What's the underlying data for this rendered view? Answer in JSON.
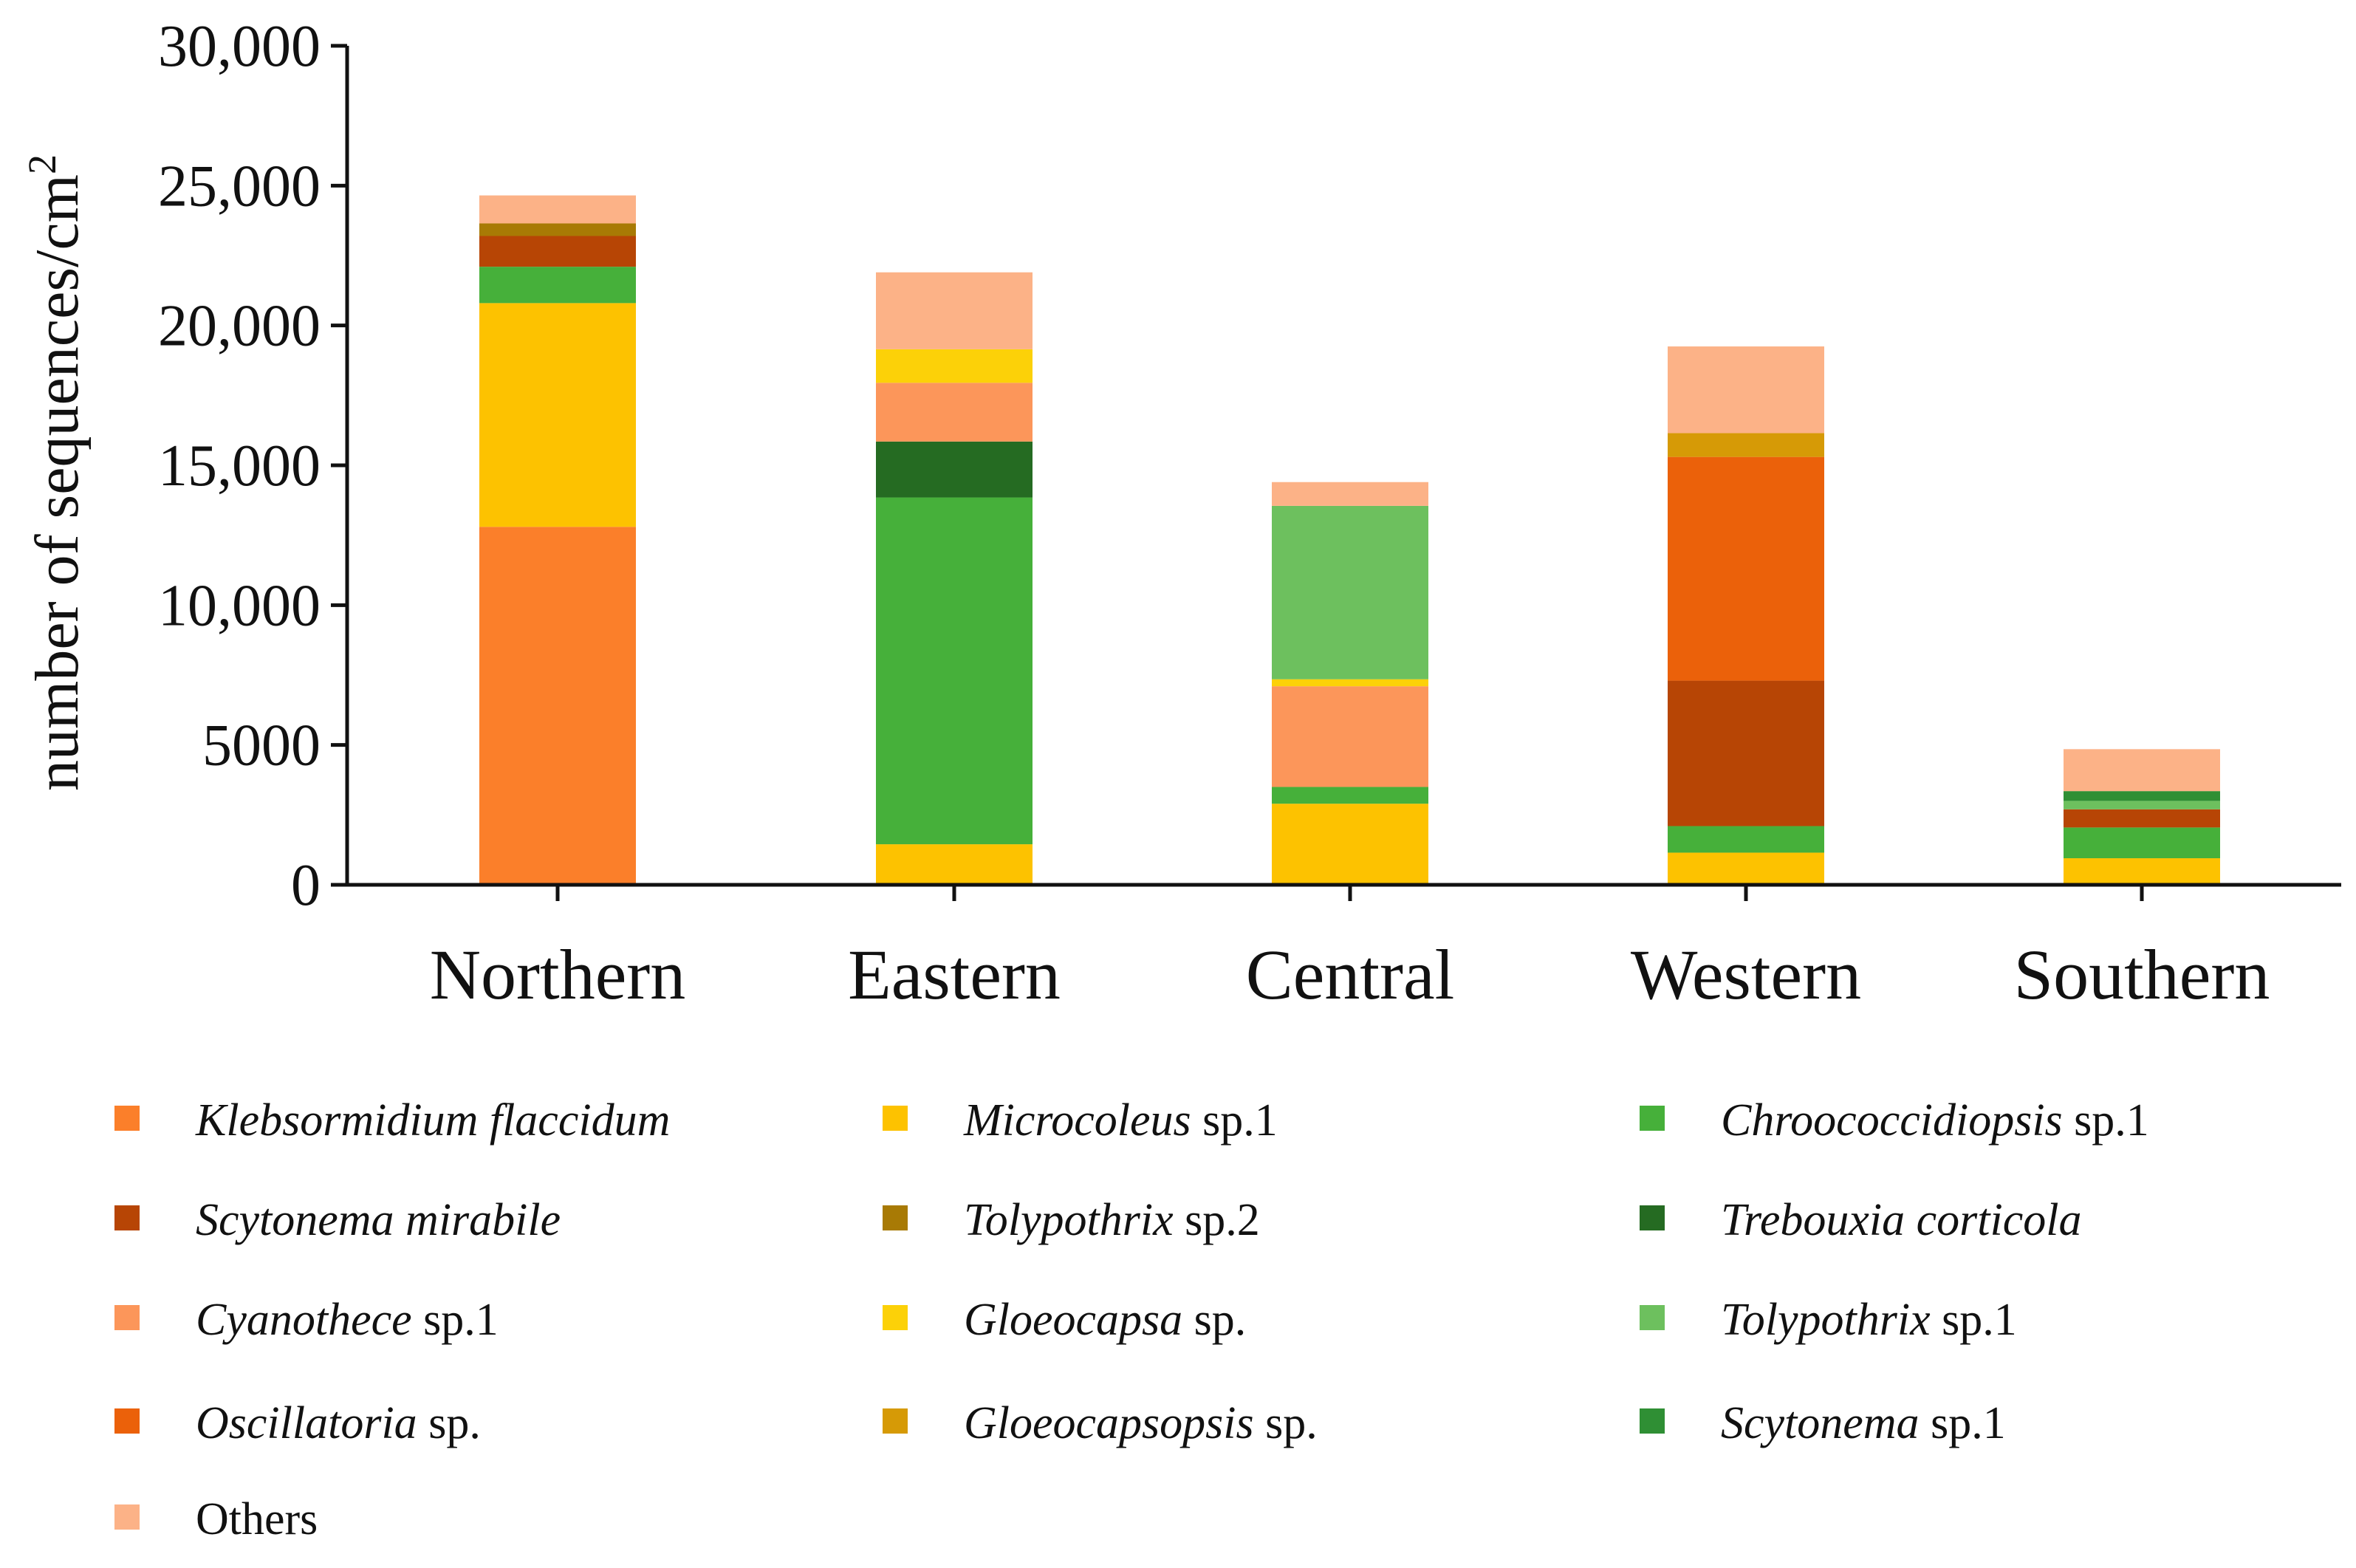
{
  "chart_data": {
    "type": "bar",
    "stacked": true,
    "ylabel": "number of sequences/cm",
    "ylabel_superscript": "2",
    "xlabel": "",
    "ylim": [
      0,
      30000
    ],
    "yticks": [
      0,
      5000,
      10000,
      15000,
      20000,
      25000,
      30000
    ],
    "ytick_labels": [
      "0",
      "5000",
      "10,000",
      "15,000",
      "20,000",
      "25,000",
      "30,000"
    ],
    "grid": false,
    "legend_position": "bottom",
    "categories": [
      "Northern",
      "Eastern",
      "Central",
      "Western",
      "Southern"
    ],
    "series": [
      {
        "name": "Klebsormidium flaccidum",
        "italic": "Klebsormidium flaccidum",
        "suffix": "",
        "color": "#FB7F2A",
        "values": [
          12800,
          0,
          0,
          0,
          0
        ]
      },
      {
        "name": "Microcoleus sp.1",
        "italic": "Microcoleus",
        "suffix": " sp.1",
        "color": "#FDC200",
        "values": [
          8000,
          1450,
          2900,
          1150,
          950
        ]
      },
      {
        "name": "Chroococcidiopsis sp.1",
        "italic": "Chroococcidiopsis",
        "suffix": " sp.1",
        "color": "#46B03A",
        "values": [
          1300,
          12400,
          600,
          950,
          1100
        ]
      },
      {
        "name": "Scytonema mirabile",
        "italic": "Scytonema mirabile",
        "suffix": "",
        "color": "#B74505",
        "values": [
          1100,
          0,
          0,
          5200,
          650
        ]
      },
      {
        "name": "Tolypothrix sp.2",
        "italic": "Tolypothrix",
        "suffix": " sp.2",
        "color": "#A87A05",
        "values": [
          450,
          0,
          0,
          0,
          0
        ]
      },
      {
        "name": "Trebouxia corticola",
        "italic": "Trebouxia corticola",
        "suffix": "",
        "color": "#256B22",
        "values": [
          0,
          2000,
          0,
          0,
          0
        ]
      },
      {
        "name": "Cyanothece sp.1",
        "italic": "Cyanothece",
        "suffix": " sp.1",
        "color": "#FC965A",
        "values": [
          0,
          2100,
          3600,
          0,
          0
        ]
      },
      {
        "name": "Gloeocapsa sp.",
        "italic": "Gloeocapsa",
        "suffix": " sp.",
        "color": "#FCD108",
        "values": [
          0,
          1200,
          250,
          0,
          0
        ]
      },
      {
        "name": "Tolypothrix sp.1",
        "italic": "Tolypothrix",
        "suffix": " sp.1",
        "color": "#6DC05E",
        "values": [
          0,
          0,
          6200,
          0,
          300
        ]
      },
      {
        "name": "Oscillatoria sp.",
        "italic": "Oscillatoria",
        "suffix": " sp.",
        "color": "#EB610A",
        "values": [
          0,
          0,
          0,
          8000,
          0
        ]
      },
      {
        "name": "Gloeocapsopsis sp.",
        "italic": "Gloeocapsopsis",
        "suffix": " sp.",
        "color": "#D69A06",
        "values": [
          0,
          0,
          0,
          850,
          0
        ]
      },
      {
        "name": "Scytonema sp.1",
        "italic": "Scytonema",
        "suffix": " sp.1",
        "color": "#2F8F34",
        "values": [
          0,
          0,
          0,
          0,
          350
        ]
      },
      {
        "name": "Others",
        "italic": "",
        "suffix": "Others",
        "color": "#FCB287",
        "values": [
          1000,
          2750,
          850,
          3100,
          1500
        ]
      }
    ],
    "legend_order": [
      "Klebsormidium flaccidum",
      "Microcoleus sp.1",
      "Chroococcidiopsis sp.1",
      "Scytonema mirabile",
      "Tolypothrix sp.2",
      "Trebouxia corticola",
      "Cyanothece sp.1",
      "Gloeocapsa sp.",
      "Tolypothrix sp.1",
      "Oscillatoria sp.",
      "Gloeocapsopsis sp.",
      "Scytonema sp.1",
      "Others"
    ]
  }
}
